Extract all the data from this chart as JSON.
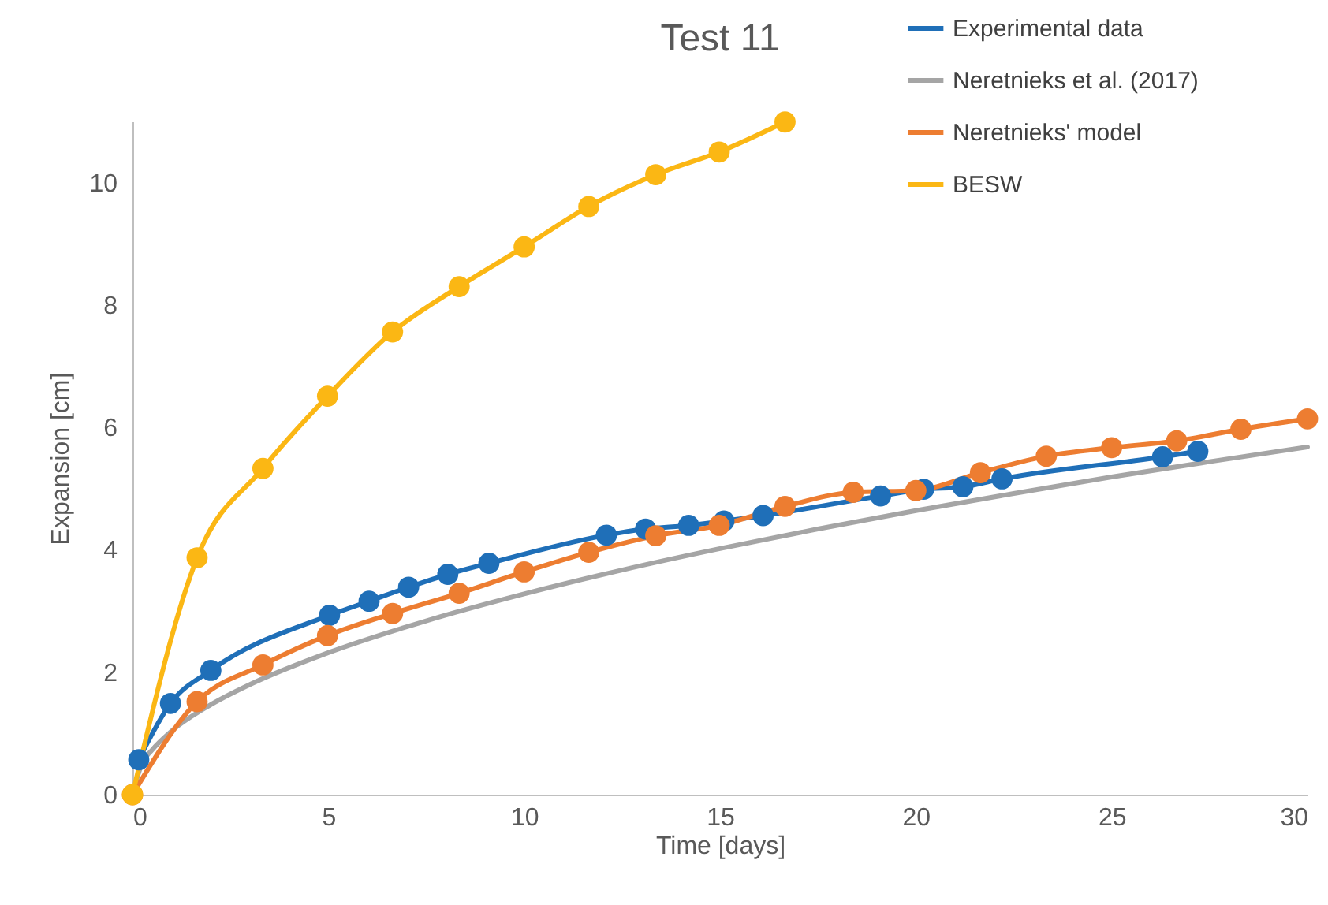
{
  "chart_data": {
    "type": "line",
    "title": "Test 11",
    "xlabel": "Time [days]",
    "ylabel": "Expansion [cm]",
    "xlim": [
      0,
      30
    ],
    "xticks": [
      0,
      5,
      10,
      15,
      20,
      25,
      30
    ],
    "ylim": [
      0,
      11
    ],
    "yticks": [
      0,
      2,
      4,
      6,
      8,
      10
    ],
    "grid": false,
    "legend": "top right",
    "series": [
      {
        "name": "Experimental data",
        "color": "#1f6fb8",
        "marker": "circle",
        "x": [
          0.16,
          0.97,
          2.0,
          5.03,
          6.04,
          7.05,
          8.05,
          9.1,
          12.1,
          13.1,
          14.2,
          15.1,
          16.1,
          19.1,
          20.2,
          21.2,
          22.2,
          26.3,
          27.2
        ],
        "values": [
          0.57,
          1.49,
          2.03,
          2.93,
          3.16,
          3.39,
          3.6,
          3.78,
          4.24,
          4.34,
          4.4,
          4.47,
          4.56,
          4.88,
          4.99,
          5.03,
          5.16,
          5.52,
          5.61
        ]
      },
      {
        "name": "Neretnieks et al. (2017)",
        "color": "#a5a5a5",
        "marker": "none",
        "x": [
          0,
          0.25,
          0.5,
          1,
          2,
          3,
          5,
          7.5,
          10,
          12.5,
          15,
          17.5,
          20,
          22.5,
          25,
          27.5,
          30
        ],
        "values": [
          0,
          0.52,
          0.73,
          1.04,
          1.47,
          1.8,
          2.32,
          2.84,
          3.28,
          3.67,
          4.02,
          4.34,
          4.64,
          4.92,
          5.19,
          5.44,
          5.68
        ]
      },
      {
        "name": "Neretnieks' model",
        "color": "#ed7d31",
        "marker": "circle",
        "x": [
          0,
          1.65,
          3.33,
          4.98,
          6.64,
          8.34,
          10.0,
          11.65,
          13.36,
          14.98,
          16.66,
          18.4,
          20.0,
          21.65,
          23.33,
          25.0,
          26.66,
          28.3,
          30
        ],
        "values": [
          0,
          1.52,
          2.12,
          2.6,
          2.96,
          3.29,
          3.64,
          3.96,
          4.23,
          4.4,
          4.71,
          4.94,
          4.97,
          5.26,
          5.53,
          5.67,
          5.78,
          5.97,
          6.14
        ]
      },
      {
        "name": "BESW",
        "color": "#fbb714",
        "marker": "circle",
        "x": [
          0,
          1.65,
          3.33,
          4.98,
          6.64,
          8.34,
          10.0,
          11.65,
          13.36,
          14.98,
          16.66
        ],
        "values": [
          0,
          3.87,
          5.33,
          6.51,
          7.56,
          8.3,
          8.95,
          9.61,
          10.13,
          10.5,
          10.99
        ]
      }
    ]
  }
}
